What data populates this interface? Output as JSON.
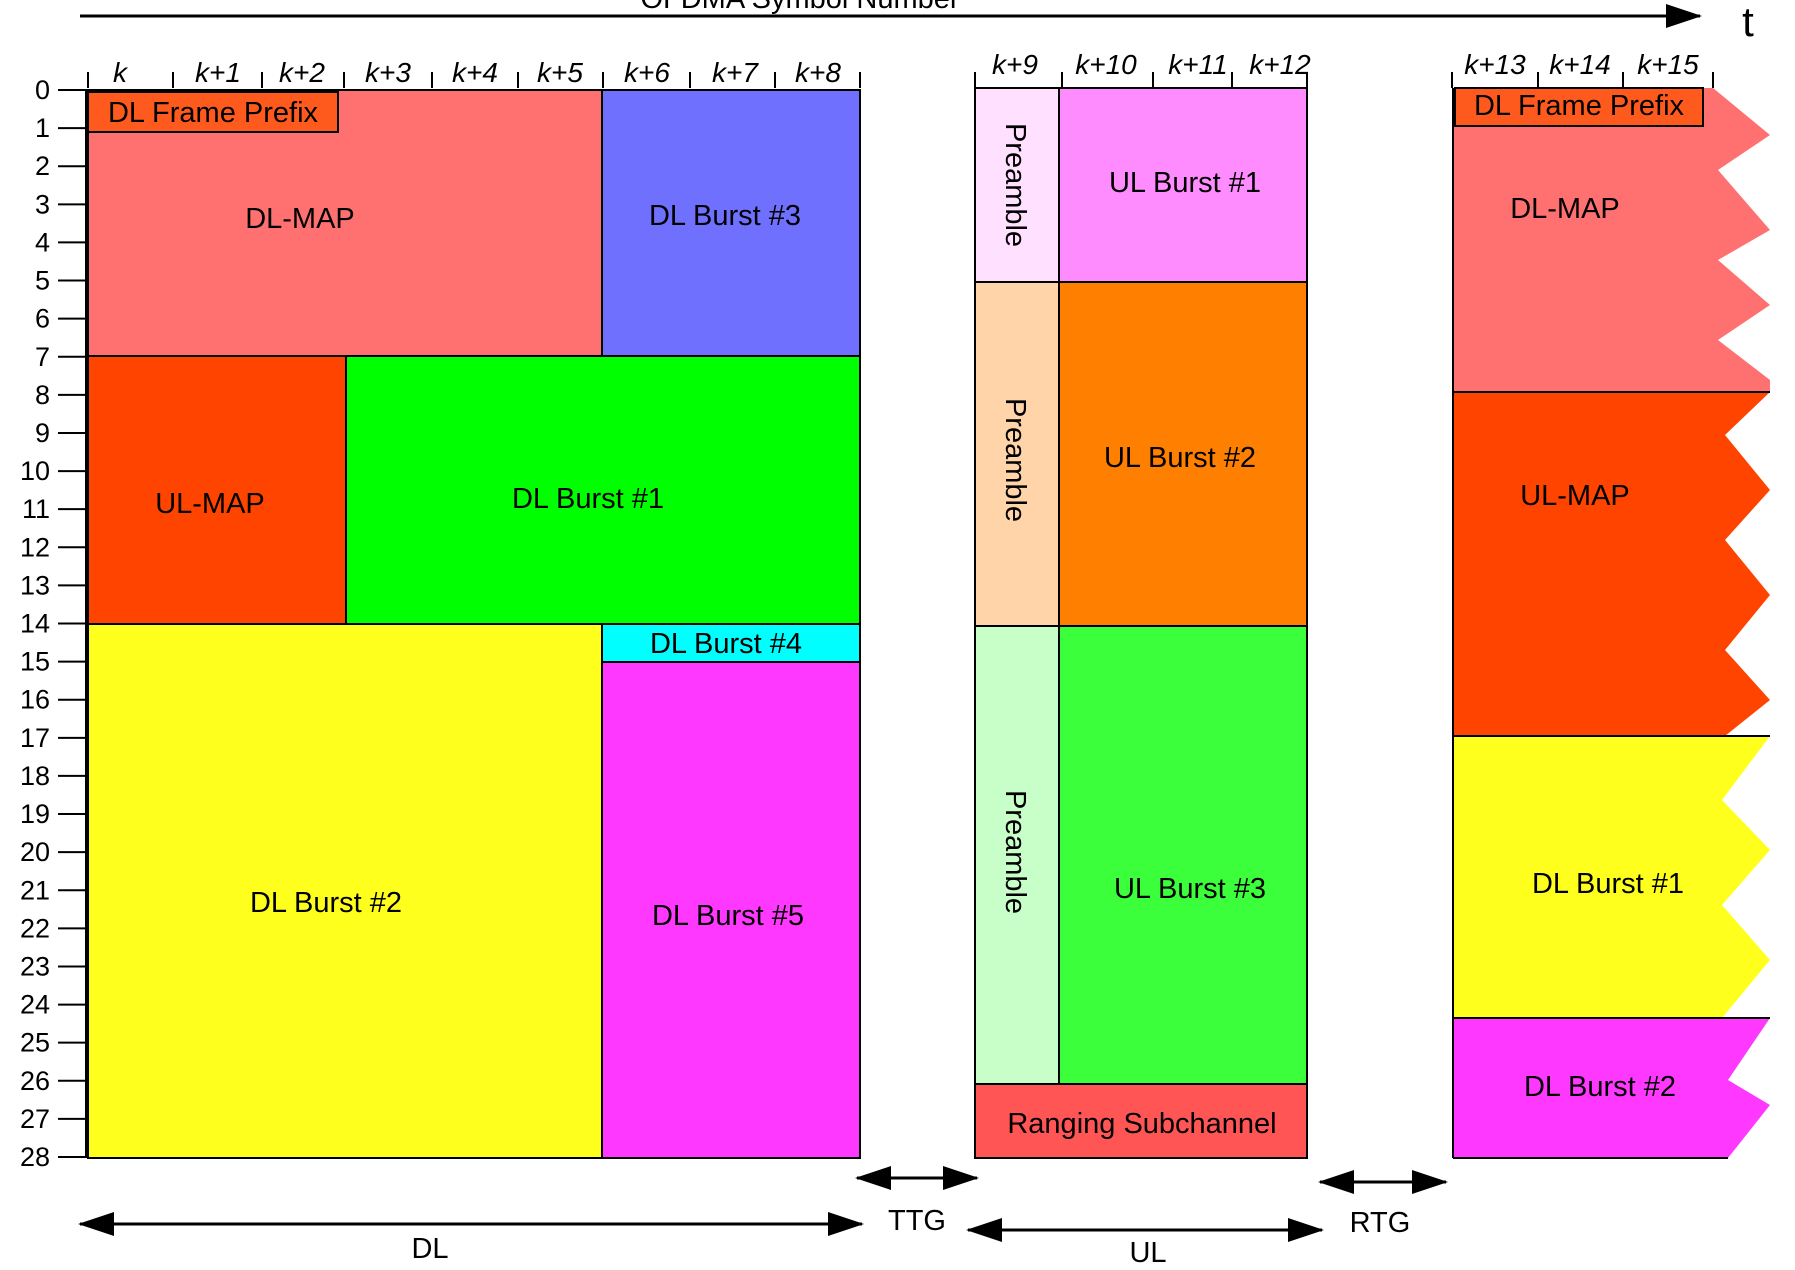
{
  "axis_title": "OFDMA Symbol Number",
  "time_label": "t",
  "symbol_columns": [
    "k",
    "k+1",
    "k+2",
    "k+3",
    "k+4",
    "k+5",
    "k+6",
    "k+7",
    "k+8",
    "k+9",
    "k+10",
    "k+11",
    "k+12",
    "k+13",
    "k+14",
    "k+15"
  ],
  "subchannel_ticks": [
    "0",
    "1",
    "2",
    "3",
    "4",
    "5",
    "6",
    "7",
    "8",
    "9",
    "10",
    "11",
    "12",
    "13",
    "14",
    "15",
    "16",
    "17",
    "18",
    "19",
    "20",
    "21",
    "22",
    "23",
    "24",
    "25",
    "26",
    "27",
    "28"
  ],
  "dl_subframe": {
    "frame_prefix": "DL Frame Prefix",
    "dl_map": "DL-MAP",
    "ul_map": "UL-MAP",
    "burst1": "DL Burst #1",
    "burst2": "DL Burst #2",
    "burst3": "DL Burst #3",
    "burst4": "DL Burst #4",
    "burst5": "DL Burst #5"
  },
  "ul_subframe": {
    "preamble": "Preamble",
    "burst1": "UL Burst #1",
    "burst2": "UL Burst #2",
    "burst3": "UL Burst #3",
    "ranging": "Ranging Subchannel"
  },
  "next_frame": {
    "frame_prefix": "DL Frame Prefix",
    "dl_map": "DL-MAP",
    "ul_map": "UL-MAP",
    "burst1": "DL Burst #1",
    "burst2": "DL Burst #2"
  },
  "gaps": {
    "dl": "DL",
    "ttg": "TTG",
    "ul": "UL",
    "rtg": "RTG"
  },
  "colors": {
    "dl_map": "#ff7070",
    "frame_prefix": "#ff5a1e",
    "ul_map": "#ff4400",
    "dl_burst1": "#00ff00",
    "dl_burst2": "#ffff1e",
    "dl_burst3": "#7070ff",
    "dl_burst4": "#00ffff",
    "dl_burst5": "#ff38ff",
    "ul_burst1": "#ff8cff",
    "ul_burst2": "#ff7f00",
    "ul_burst3": "#3cff3c",
    "ranging": "#ff5555",
    "preamble1": "#ffe0ff",
    "preamble2": "#ffd4a8",
    "preamble3": "#c8ffc8"
  }
}
